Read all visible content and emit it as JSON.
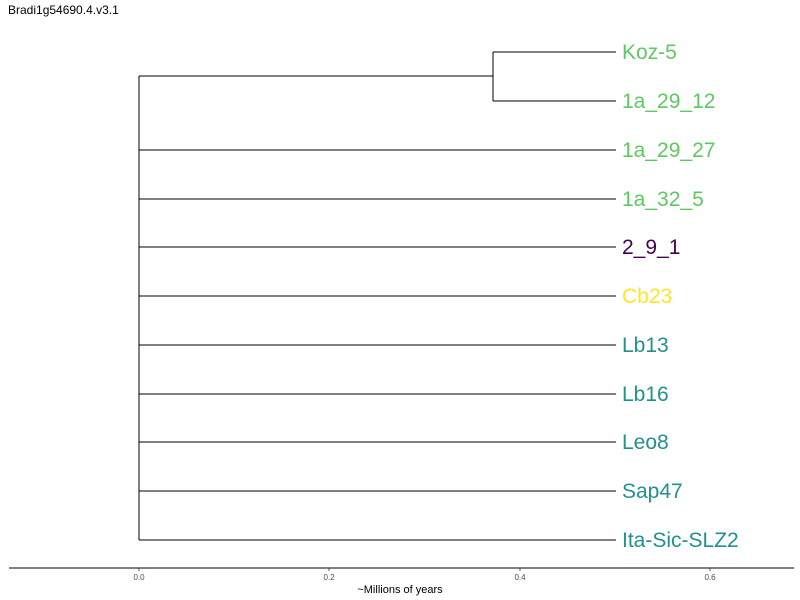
{
  "title": "Bradi1g54690.4.v3.1",
  "tree": {
    "x_axis_label": "~Millions of years",
    "x_ticks": [
      "0.0",
      "0.2",
      "0.4",
      "0.6"
    ],
    "tips": [
      {
        "label": "Koz-5",
        "color": "#5ec962"
      },
      {
        "label": "1a_29_12",
        "color": "#5ec962"
      },
      {
        "label": "1a_29_27",
        "color": "#5ec962"
      },
      {
        "label": "1a_32_5",
        "color": "#5ec962"
      },
      {
        "label": "2_9_1",
        "color": "#440154"
      },
      {
        "label": "Cb23",
        "color": "#fde725"
      },
      {
        "label": "Lb13",
        "color": "#21918c"
      },
      {
        "label": "Lb16",
        "color": "#21918c"
      },
      {
        "label": "Leo8",
        "color": "#21918c"
      },
      {
        "label": "Sap47",
        "color": "#21918c"
      },
      {
        "label": "Ita-Sic-SLZ2",
        "color": "#21918c"
      }
    ]
  }
}
